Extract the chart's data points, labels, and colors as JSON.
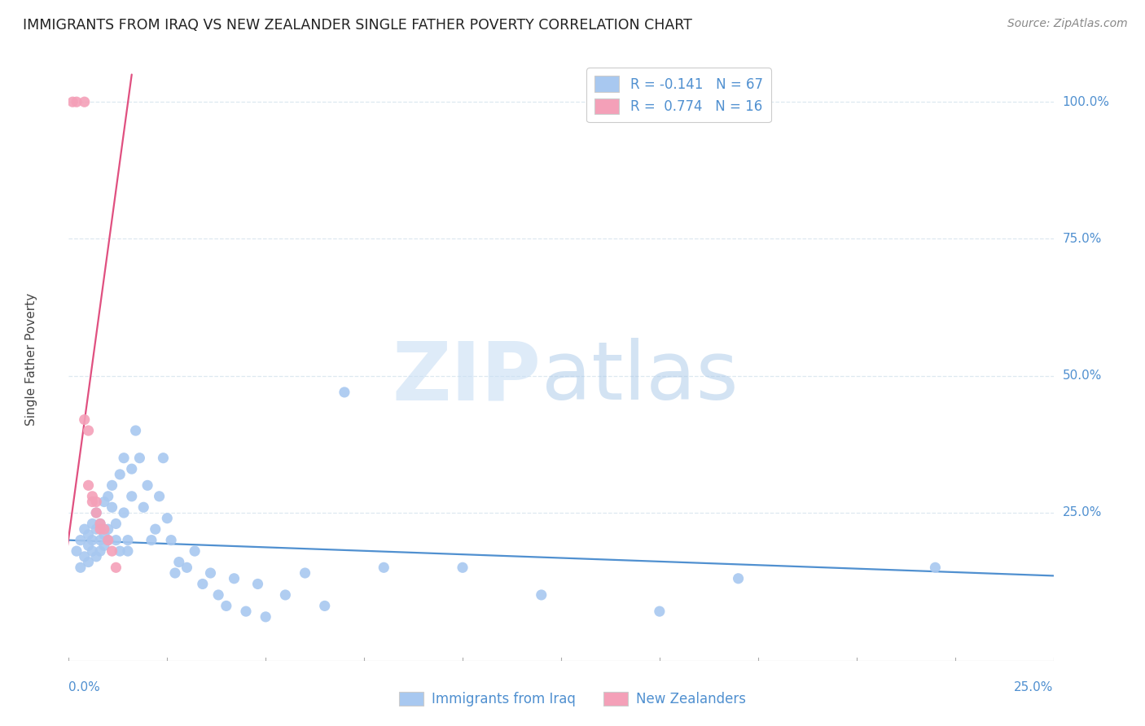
{
  "title": "IMMIGRANTS FROM IRAQ VS NEW ZEALANDER SINGLE FATHER POVERTY CORRELATION CHART",
  "source": "Source: ZipAtlas.com",
  "ylabel": "Single Father Poverty",
  "xlim": [
    0.0,
    0.25
  ],
  "ylim": [
    -0.02,
    1.08
  ],
  "ytick_values": [
    0.25,
    0.5,
    0.75,
    1.0
  ],
  "ytick_labels": [
    "25.0%",
    "50.0%",
    "75.0%",
    "100.0%"
  ],
  "legend_bottom": [
    "Immigrants from Iraq",
    "New Zealanders"
  ],
  "legend_bottom_colors": [
    "#a8c8f0",
    "#f4a0b8"
  ],
  "iraq_scatter_x": [
    0.002,
    0.003,
    0.003,
    0.004,
    0.004,
    0.005,
    0.005,
    0.005,
    0.006,
    0.006,
    0.006,
    0.007,
    0.007,
    0.007,
    0.008,
    0.008,
    0.008,
    0.009,
    0.009,
    0.009,
    0.01,
    0.01,
    0.01,
    0.011,
    0.011,
    0.012,
    0.012,
    0.013,
    0.013,
    0.014,
    0.014,
    0.015,
    0.015,
    0.016,
    0.016,
    0.017,
    0.018,
    0.019,
    0.02,
    0.021,
    0.022,
    0.023,
    0.024,
    0.025,
    0.026,
    0.027,
    0.028,
    0.03,
    0.032,
    0.034,
    0.036,
    0.038,
    0.04,
    0.042,
    0.045,
    0.048,
    0.05,
    0.055,
    0.06,
    0.065,
    0.07,
    0.08,
    0.1,
    0.12,
    0.15,
    0.17,
    0.22
  ],
  "iraq_scatter_y": [
    0.18,
    0.2,
    0.15,
    0.22,
    0.17,
    0.19,
    0.16,
    0.21,
    0.23,
    0.18,
    0.2,
    0.25,
    0.17,
    0.22,
    0.2,
    0.18,
    0.23,
    0.27,
    0.19,
    0.21,
    0.2,
    0.28,
    0.22,
    0.26,
    0.3,
    0.23,
    0.2,
    0.32,
    0.18,
    0.35,
    0.25,
    0.2,
    0.18,
    0.33,
    0.28,
    0.4,
    0.35,
    0.26,
    0.3,
    0.2,
    0.22,
    0.28,
    0.35,
    0.24,
    0.2,
    0.14,
    0.16,
    0.15,
    0.18,
    0.12,
    0.14,
    0.1,
    0.08,
    0.13,
    0.07,
    0.12,
    0.06,
    0.1,
    0.14,
    0.08,
    0.47,
    0.15,
    0.15,
    0.1,
    0.07,
    0.13,
    0.15
  ],
  "nz_scatter_x": [
    0.001,
    0.002,
    0.004,
    0.004,
    0.005,
    0.005,
    0.006,
    0.006,
    0.007,
    0.007,
    0.008,
    0.008,
    0.009,
    0.01,
    0.011,
    0.012
  ],
  "nz_scatter_y": [
    1.0,
    1.0,
    1.0,
    0.42,
    0.4,
    0.3,
    0.28,
    0.27,
    0.27,
    0.25,
    0.23,
    0.22,
    0.22,
    0.2,
    0.18,
    0.15
  ],
  "iraq_line_x": [
    0.0,
    0.25
  ],
  "iraq_line_y": [
    0.2,
    0.135
  ],
  "nz_line_x": [
    -0.002,
    0.016
  ],
  "nz_line_y": [
    0.1,
    1.05
  ],
  "iraq_color": "#a8c8f0",
  "nz_color": "#f4a0b8",
  "iraq_line_color": "#5090d0",
  "nz_line_color": "#e05080",
  "title_color": "#222222",
  "source_color": "#888888",
  "right_label_color": "#5090d0",
  "background_color": "#ffffff",
  "grid_color": "#dde8f0"
}
